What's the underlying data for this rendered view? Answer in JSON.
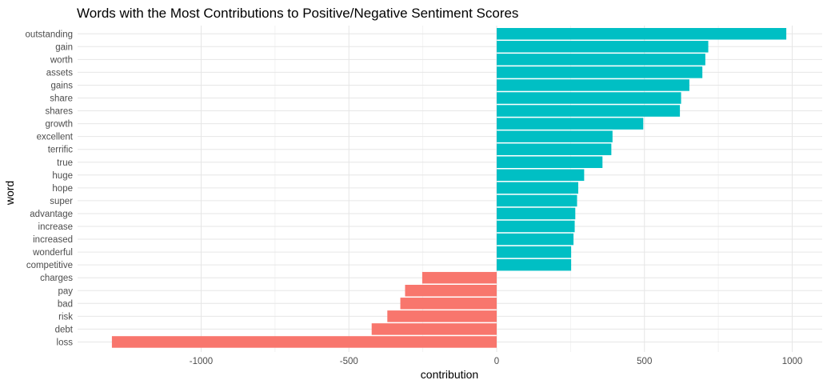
{
  "chart_data": {
    "type": "bar",
    "orientation": "horizontal",
    "title": "Words with the Most Contributions to Positive/Negative Sentiment Scores",
    "xlabel": "contribution",
    "ylabel": "word",
    "xlim": [
      -1300,
      1000
    ],
    "x_ticks": [
      -1000,
      -500,
      0,
      500,
      1000
    ],
    "x_tick_labels": [
      "-1000",
      "-500",
      "0",
      "500",
      "1000"
    ],
    "grid": true,
    "legend": "none",
    "categories": [
      "outstanding",
      "gain",
      "worth",
      "assets",
      "gains",
      "share",
      "shares",
      "growth",
      "excellent",
      "terrific",
      "true",
      "huge",
      "hope",
      "super",
      "advantage",
      "increase",
      "increased",
      "wonderful",
      "competitive",
      "charges",
      "pay",
      "bad",
      "risk",
      "debt",
      "loss"
    ],
    "values": [
      980,
      716,
      706,
      696,
      652,
      624,
      620,
      496,
      392,
      388,
      358,
      296,
      276,
      272,
      266,
      264,
      260,
      252,
      252,
      -252,
      -310,
      -326,
      -370,
      -423,
      -1302
    ],
    "colors": {
      "positive": "#00BFC4",
      "negative": "#F8766D",
      "grid_major": "#e6e6e6",
      "grid_minor": "#f2f2f2"
    }
  }
}
